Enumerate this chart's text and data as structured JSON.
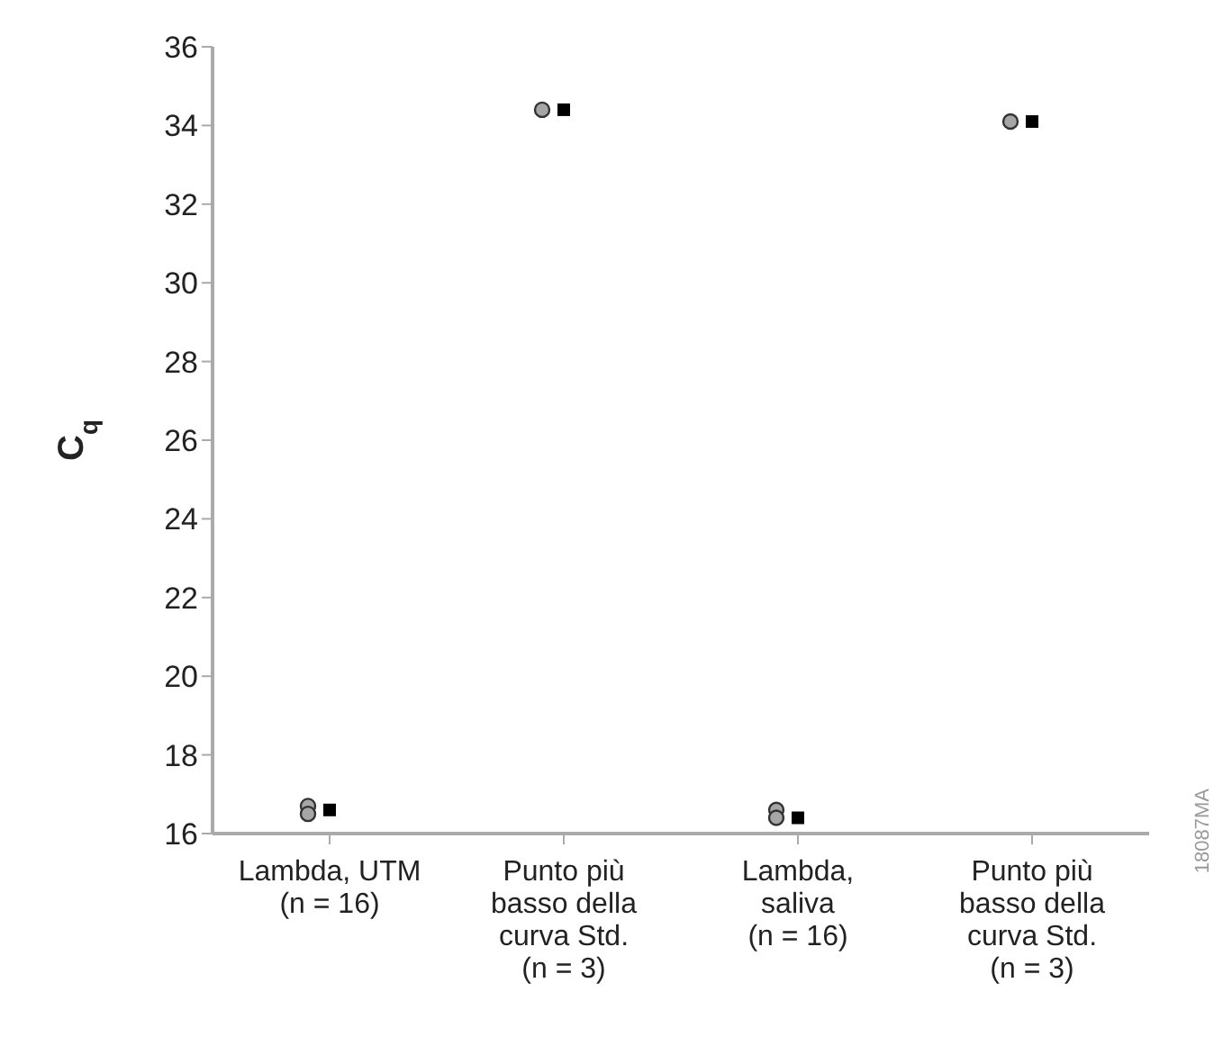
{
  "chart_data": {
    "type": "scatter",
    "ylabel": "C$_{q}$",
    "categories": [
      "Lambda, UTM\n(n = 16)",
      "Punto più\nbasso della\ncurva Std.\n(n = 3)",
      "Lambda,\nsaliva\n(n = 16)",
      "Punto più\nbasso della\ncurva Std.\n(n = 3)"
    ],
    "series": [
      {
        "color": "#a6a6a6",
        "marker": "circle",
        "values": [
          16.7,
          34.4,
          16.6,
          34.1
        ]
      },
      {
        "color": "#a6a6a6",
        "marker": "circle",
        "values": [
          16.5,
          null,
          16.4,
          null
        ]
      },
      {
        "color": "#000000",
        "marker": "square",
        "values": [
          16.6,
          34.4,
          16.4,
          34.1
        ]
      }
    ],
    "ylim": [
      16,
      36
    ],
    "yticks": [
      16,
      18,
      20,
      22,
      24,
      26,
      28,
      30,
      32,
      34,
      36
    ],
    "annotations": [
      "18087MA"
    ]
  }
}
